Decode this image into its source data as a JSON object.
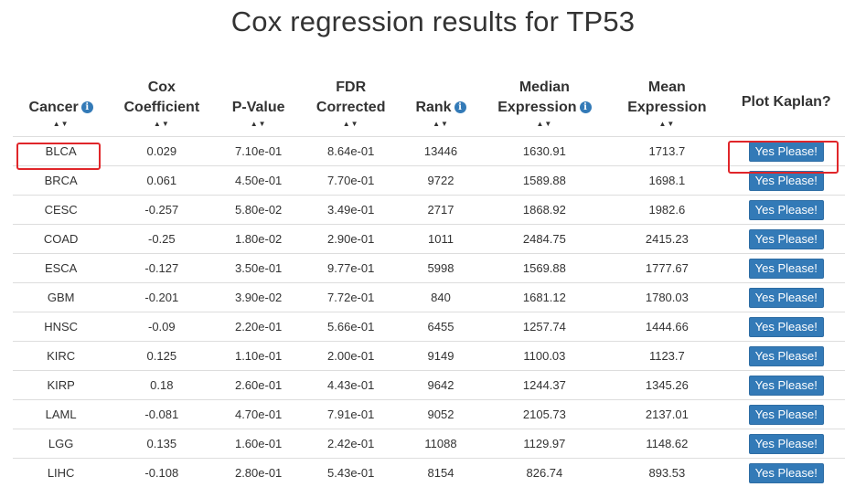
{
  "page_title": "Cox regression results for TP53",
  "sort_glyph": "▲▼",
  "columns": [
    {
      "line1": "Cancer",
      "line2": "",
      "info": true
    },
    {
      "line1": "Cox",
      "line2": "Coefficient",
      "info": false
    },
    {
      "line1": "P-Value",
      "line2": "",
      "info": false
    },
    {
      "line1": "FDR",
      "line2": "Corrected",
      "info": false
    },
    {
      "line1": "Rank",
      "line2": "",
      "info": true
    },
    {
      "line1": "Median",
      "line2": "Expression",
      "info": true
    },
    {
      "line1": "Mean",
      "line2": "Expression",
      "info": false
    },
    {
      "line1": "Plot Kaplan?",
      "line2": "",
      "info": false
    }
  ],
  "button_label": "Yes Please!",
  "rows": [
    {
      "cancer": "BLCA",
      "cox": "0.029",
      "p": "7.10e-01",
      "fdr": "8.64e-01",
      "rank": "13446",
      "median": "1630.91",
      "mean": "1713.7"
    },
    {
      "cancer": "BRCA",
      "cox": "0.061",
      "p": "4.50e-01",
      "fdr": "7.70e-01",
      "rank": "9722",
      "median": "1589.88",
      "mean": "1698.1"
    },
    {
      "cancer": "CESC",
      "cox": "-0.257",
      "p": "5.80e-02",
      "fdr": "3.49e-01",
      "rank": "2717",
      "median": "1868.92",
      "mean": "1982.6"
    },
    {
      "cancer": "COAD",
      "cox": "-0.25",
      "p": "1.80e-02",
      "fdr": "2.90e-01",
      "rank": "1011",
      "median": "2484.75",
      "mean": "2415.23"
    },
    {
      "cancer": "ESCA",
      "cox": "-0.127",
      "p": "3.50e-01",
      "fdr": "9.77e-01",
      "rank": "5998",
      "median": "1569.88",
      "mean": "1777.67"
    },
    {
      "cancer": "GBM",
      "cox": "-0.201",
      "p": "3.90e-02",
      "fdr": "7.72e-01",
      "rank": "840",
      "median": "1681.12",
      "mean": "1780.03"
    },
    {
      "cancer": "HNSC",
      "cox": "-0.09",
      "p": "2.20e-01",
      "fdr": "5.66e-01",
      "rank": "6455",
      "median": "1257.74",
      "mean": "1444.66"
    },
    {
      "cancer": "KIRC",
      "cox": "0.125",
      "p": "1.10e-01",
      "fdr": "2.00e-01",
      "rank": "9149",
      "median": "1100.03",
      "mean": "1123.7"
    },
    {
      "cancer": "KIRP",
      "cox": "0.18",
      "p": "2.60e-01",
      "fdr": "4.43e-01",
      "rank": "9642",
      "median": "1244.37",
      "mean": "1345.26"
    },
    {
      "cancer": "LAML",
      "cox": "-0.081",
      "p": "4.70e-01",
      "fdr": "7.91e-01",
      "rank": "9052",
      "median": "2105.73",
      "mean": "2137.01"
    },
    {
      "cancer": "LGG",
      "cox": "0.135",
      "p": "1.60e-01",
      "fdr": "2.42e-01",
      "rank": "11088",
      "median": "1129.97",
      "mean": "1148.62"
    },
    {
      "cancer": "LIHC",
      "cox": "-0.108",
      "p": "2.80e-01",
      "fdr": "5.43e-01",
      "rank": "8154",
      "median": "826.74",
      "mean": "893.53"
    }
  ],
  "highlight_color": "#e0262a",
  "accent_color": "#337ab7"
}
